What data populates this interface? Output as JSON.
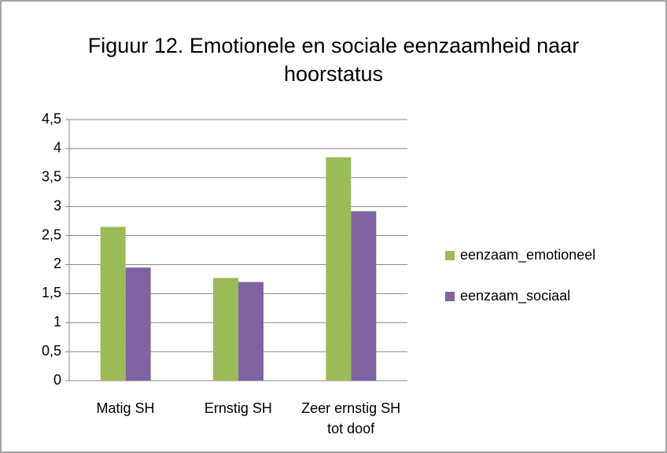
{
  "chart_data": {
    "type": "bar",
    "title": "Figuur 12. Emotionele en sociale eenzaamheid naar hoorstatus",
    "categories": [
      "Matig SH",
      "Ernstig SH",
      "Zeer ernstig SH tot doof"
    ],
    "series": [
      {
        "name": "eenzaam_emotioneel",
        "color": "#9bbb59",
        "values": [
          2.65,
          1.77,
          3.85
        ]
      },
      {
        "name": "eenzaam_sociaal",
        "color": "#8064a2",
        "values": [
          1.95,
          1.7,
          2.92
        ]
      }
    ],
    "ylim": [
      0,
      4.5
    ],
    "yticks": [
      0,
      {
        "value": 0.5,
        "label": "0,5"
      },
      1,
      {
        "value": 1.5,
        "label": "1,5"
      },
      2,
      {
        "value": 2.5,
        "label": "2,5"
      },
      3,
      {
        "value": 3.5,
        "label": "3,5"
      },
      4,
      {
        "value": 4.5,
        "label": "4,5"
      }
    ],
    "grid": true,
    "legend": "right"
  }
}
